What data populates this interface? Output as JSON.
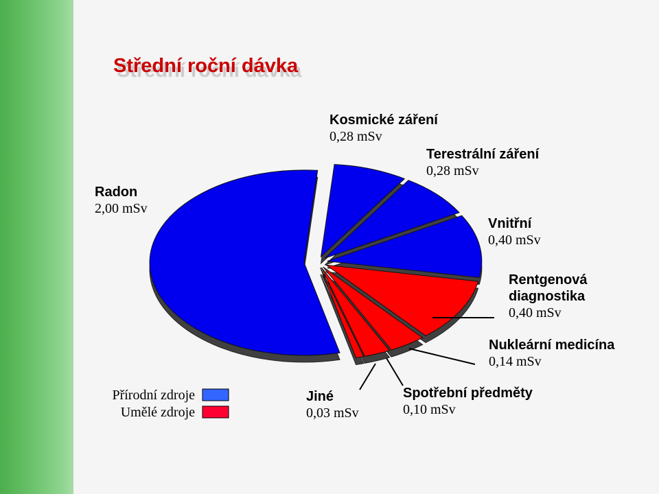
{
  "title": "Střední roční dávka",
  "chart_data": {
    "type": "pie",
    "title": "Střední roční dávka",
    "unit": "mSv",
    "slices": [
      {
        "name": "Kosmické záření",
        "value": 0.28,
        "label": "0,28 mSv",
        "group": "natural"
      },
      {
        "name": "Terestrální záření",
        "value": 0.28,
        "label": "0,28 mSv",
        "group": "natural"
      },
      {
        "name": "Vnitřní",
        "value": 0.4,
        "label": "0,40 mSv",
        "group": "natural"
      },
      {
        "name": "Rentgenová diagnostika",
        "name_lines": [
          "Rentgenová",
          "diagnostika"
        ],
        "value": 0.4,
        "label": "0,40 mSv",
        "group": "artificial"
      },
      {
        "name": "Nukleární medicína",
        "value": 0.14,
        "label": "0,14 mSv",
        "group": "artificial"
      },
      {
        "name": "Spotřební předměty",
        "value": 0.1,
        "label": "0,10 mSv",
        "group": "artificial"
      },
      {
        "name": "Jiné",
        "value": 0.03,
        "label": "0,03 mSv",
        "group": "artificial"
      },
      {
        "name": "Radon",
        "value": 2.0,
        "label": "2,00 mSv",
        "group": "natural"
      }
    ],
    "legend": [
      {
        "label": "Přírodní zdroje",
        "group": "natural",
        "color": "#3366ff"
      },
      {
        "label": "Umělé zdroje",
        "group": "artificial",
        "color": "#ff0033"
      }
    ],
    "colors": {
      "natural": "#0000ee",
      "artificial": "#ff0000"
    },
    "legend_position": "bottom-left"
  }
}
